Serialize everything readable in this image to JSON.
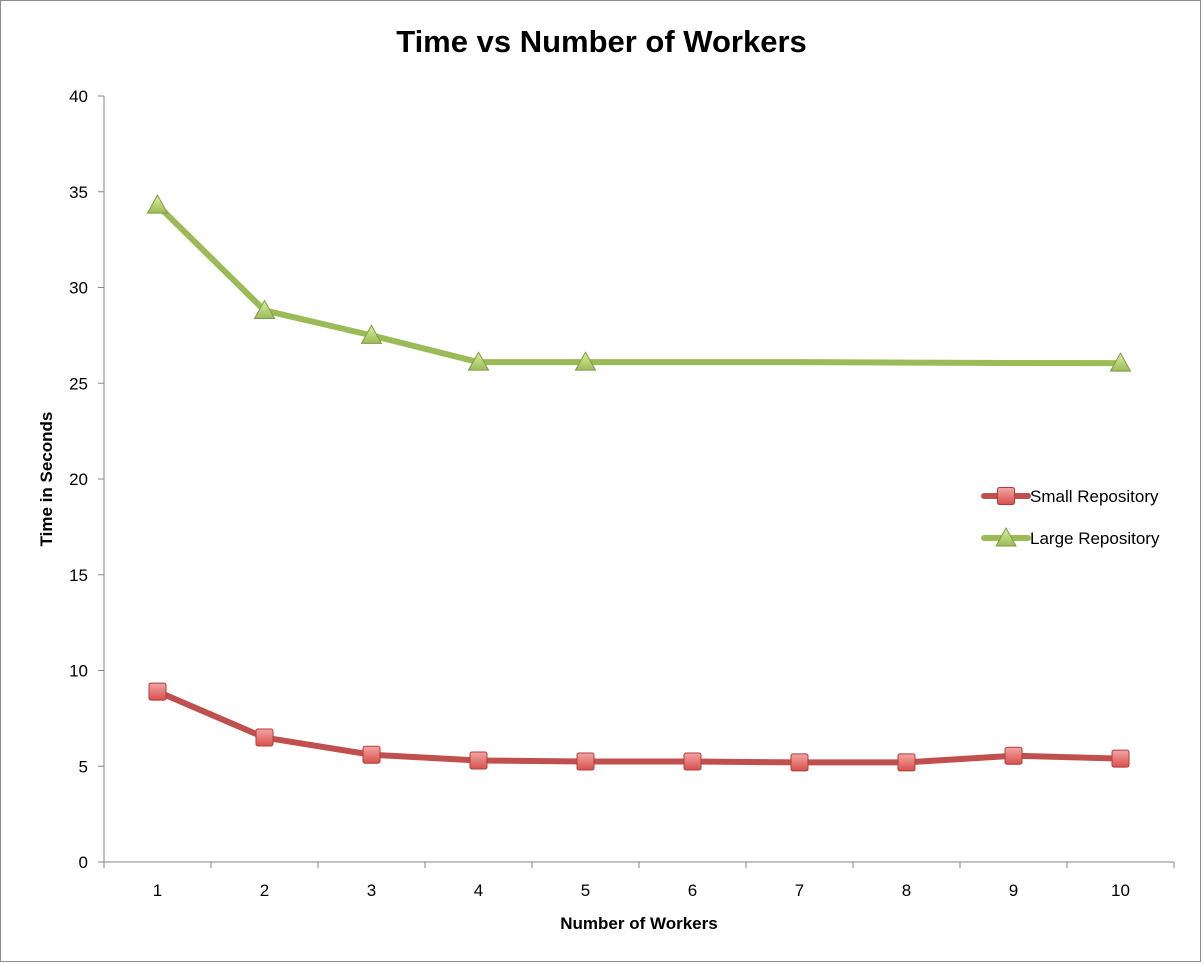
{
  "chart_data": {
    "type": "line",
    "title": "Time vs Number of Workers",
    "xlabel": "Number of Workers",
    "ylabel": "Time in Seconds",
    "categories": [
      "1",
      "2",
      "3",
      "4",
      "5",
      "6",
      "7",
      "8",
      "9",
      "10"
    ],
    "ylim": [
      0,
      40
    ],
    "yticks": [
      0,
      5,
      10,
      15,
      20,
      25,
      30,
      35,
      40
    ],
    "grid": false,
    "legend_position": "right",
    "series": [
      {
        "name": "Small Repository",
        "color": "#c0504d",
        "marker": "square",
        "values": [
          8.9,
          6.5,
          5.6,
          5.3,
          5.25,
          5.25,
          5.2,
          5.2,
          5.55,
          5.4
        ]
      },
      {
        "name": "Large Repository",
        "color": "#9bbb59",
        "marker": "triangle",
        "values": [
          34.3,
          28.8,
          27.5,
          26.1,
          26.1,
          null,
          null,
          null,
          null,
          26.05
        ],
        "line_values": [
          34.3,
          28.8,
          27.5,
          26.1,
          26.1,
          26.1,
          26.1,
          26.08,
          26.06,
          26.05
        ]
      }
    ]
  }
}
